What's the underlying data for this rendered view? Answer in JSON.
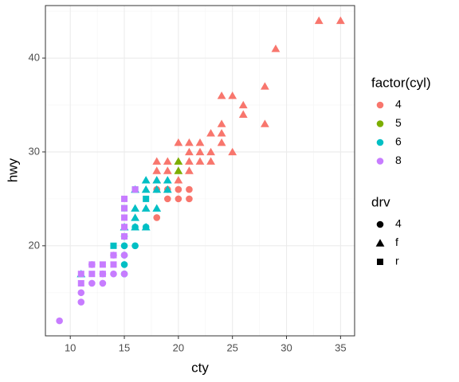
{
  "chart_data": {
    "type": "scatter",
    "x_label": "cty",
    "y_label": "hwy",
    "xlim": [
      7.7,
      36.3
    ],
    "ylim": [
      10.4,
      45.6
    ],
    "xticks": [
      10,
      15,
      20,
      25,
      30,
      35
    ],
    "yticks": [
      20,
      30,
      40
    ],
    "xminor": [
      7.5,
      12.5,
      17.5,
      22.5,
      27.5,
      32.5
    ],
    "yminor": [
      15,
      25,
      35,
      45
    ],
    "grid": true,
    "legends": [
      {
        "title": "factor(cyl)",
        "entries": [
          {
            "label": "4",
            "color": "#F8766D"
          },
          {
            "label": "5",
            "color": "#7CAE00"
          },
          {
            "label": "6",
            "color": "#00BFC4"
          },
          {
            "label": "8",
            "color": "#C77CFF"
          }
        ]
      },
      {
        "title": "drv",
        "entries": [
          {
            "label": "4",
            "shape": "circle"
          },
          {
            "label": "f",
            "shape": "triangle"
          },
          {
            "label": "r",
            "shape": "square"
          }
        ]
      }
    ],
    "series": [
      {
        "color": "#F8766D",
        "shape": "triangle",
        "x": [
          33,
          35,
          29,
          28,
          24,
          25,
          26,
          26,
          28,
          24,
          23,
          24,
          20,
          21,
          22,
          24,
          21,
          22,
          23,
          25,
          18,
          19,
          21,
          22,
          23,
          18,
          19,
          21,
          18,
          20
        ],
        "values": [
          44,
          44,
          41,
          37,
          36,
          36,
          35,
          34,
          33,
          33,
          32,
          32,
          31,
          31,
          31,
          31,
          30,
          30,
          30,
          30,
          29,
          29,
          29,
          29,
          29,
          28,
          28,
          28,
          27,
          27
        ]
      },
      {
        "color": "#F8766D",
        "shape": "circle",
        "x": [
          18,
          19,
          20,
          21,
          19,
          20,
          21,
          18
        ],
        "values": [
          26,
          26,
          26,
          26,
          25,
          25,
          25,
          23
        ]
      },
      {
        "color": "#7CAE00",
        "shape": "triangle",
        "x": [
          20,
          20
        ],
        "values": [
          29,
          28
        ]
      },
      {
        "color": "#00BFC4",
        "shape": "triangle",
        "x": [
          17,
          18,
          19,
          16,
          17,
          18,
          19,
          16,
          17,
          18,
          16,
          16,
          17,
          15,
          11
        ],
        "values": [
          27,
          27,
          27,
          26,
          26,
          26,
          26,
          24,
          24,
          24,
          23,
          22,
          22,
          22,
          17
        ]
      },
      {
        "color": "#00BFC4",
        "shape": "circle",
        "x": [
          15,
          16,
          15,
          15,
          15,
          16,
          17,
          15
        ],
        "values": [
          20,
          20,
          19,
          18,
          17,
          22,
          22,
          21
        ]
      },
      {
        "color": "#00BFC4",
        "shape": "square",
        "x": [
          14,
          15,
          16,
          17
        ],
        "values": [
          20,
          24,
          26,
          25
        ]
      },
      {
        "color": "#C77CFF",
        "shape": "circle",
        "x": [
          9,
          11,
          11,
          12,
          13,
          13,
          14,
          15,
          15,
          14,
          12
        ],
        "values": [
          12,
          14,
          15,
          16,
          16,
          17,
          17,
          17,
          19,
          19,
          18
        ]
      },
      {
        "color": "#C77CFF",
        "shape": "square",
        "x": [
          11,
          11,
          12,
          12,
          13,
          13,
          14,
          15,
          15,
          15,
          15,
          15,
          16,
          14
        ],
        "values": [
          16,
          17,
          17,
          18,
          17,
          18,
          18,
          25,
          24,
          23,
          22,
          21,
          26,
          19
        ]
      }
    ]
  }
}
